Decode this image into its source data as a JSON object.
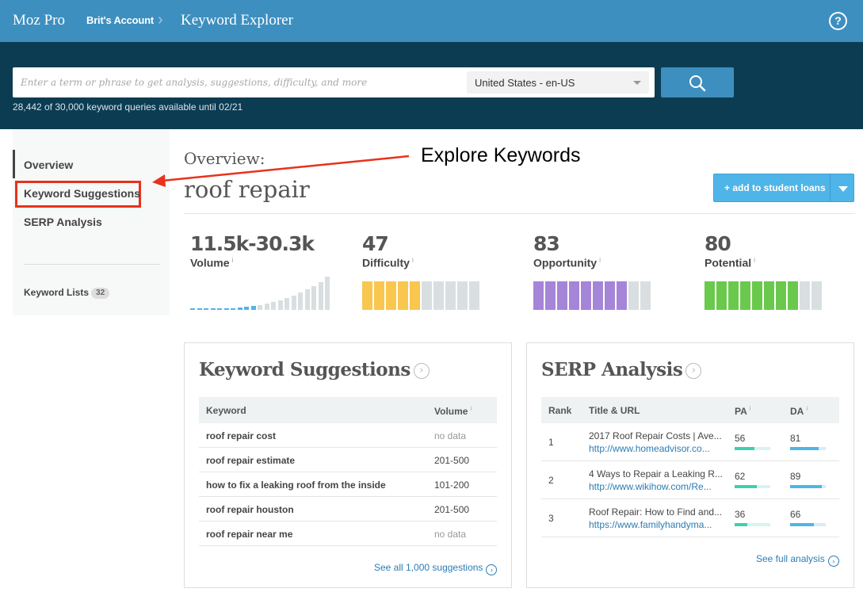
{
  "topbar": {
    "app_name": "Moz Pro",
    "account": "Brit's Account",
    "page_title": "Keyword Explorer",
    "help": "?"
  },
  "search": {
    "placeholder": "Enter a term or phrase to get analysis, suggestions, difficulty, and more",
    "locale": "United States - en-US",
    "quota": "28,442 of 30,000 keyword queries available until 02/21"
  },
  "sidebar": {
    "items": [
      {
        "label": "Overview",
        "active": true
      },
      {
        "label": "Keyword Suggestions",
        "highlighted": true
      },
      {
        "label": "SERP Analysis"
      }
    ],
    "keyword_lists": {
      "label": "Keyword Lists",
      "count": "32"
    }
  },
  "annotation": {
    "text": "Explore Keywords",
    "color": "#e8321c"
  },
  "overview": {
    "label": "Overview:",
    "keyword": "roof repair",
    "add_button": "+ add to student loans"
  },
  "metrics": [
    {
      "value": "11.5k-30.3k",
      "name": "Volume",
      "color": "#4fb5e8",
      "trend": [
        1,
        1,
        1,
        1,
        1,
        2,
        2,
        3,
        4,
        5,
        6,
        8,
        10,
        12,
        15,
        18,
        22,
        26,
        30,
        35,
        42
      ]
    },
    {
      "value": "47",
      "name": "Difficulty",
      "score": 47,
      "color": "#f9c74f"
    },
    {
      "value": "83",
      "name": "Opportunity",
      "score": 83,
      "color": "#a585d8"
    },
    {
      "value": "80",
      "name": "Potential",
      "score": 80,
      "color": "#6ac94d"
    }
  ],
  "suggestions": {
    "title": "Keyword Suggestions",
    "columns": [
      "Keyword",
      "Volume"
    ],
    "rows": [
      {
        "keyword": "roof repair cost",
        "volume": "no data"
      },
      {
        "keyword": "roof repair estimate",
        "volume": "201-500"
      },
      {
        "keyword": "how to fix a leaking roof from the inside",
        "volume": "101-200"
      },
      {
        "keyword": "roof repair houston",
        "volume": "201-500"
      },
      {
        "keyword": "roof repair near me",
        "volume": "no data"
      }
    ],
    "see_all": "See all 1,000 suggestions"
  },
  "serp": {
    "title": "SERP Analysis",
    "columns": [
      "Rank",
      "Title & URL",
      "PA",
      "DA"
    ],
    "rows": [
      {
        "rank": "1",
        "title": "2017 Roof Repair Costs | Ave...",
        "url": "http://www.homeadvisor.co...",
        "pa": "56",
        "da": "81"
      },
      {
        "rank": "2",
        "title": "4 Ways to Repair a Leaking R...",
        "url": "http://www.wikihow.com/Re...",
        "pa": "62",
        "da": "89"
      },
      {
        "rank": "3",
        "title": "Roof Repair: How to Find and...",
        "url": "https://www.familyhandyma...",
        "pa": "36",
        "da": "66"
      }
    ],
    "see_full": "See full analysis",
    "pa_color": "#3ecfb0",
    "da_color": "#4fb5e8"
  }
}
